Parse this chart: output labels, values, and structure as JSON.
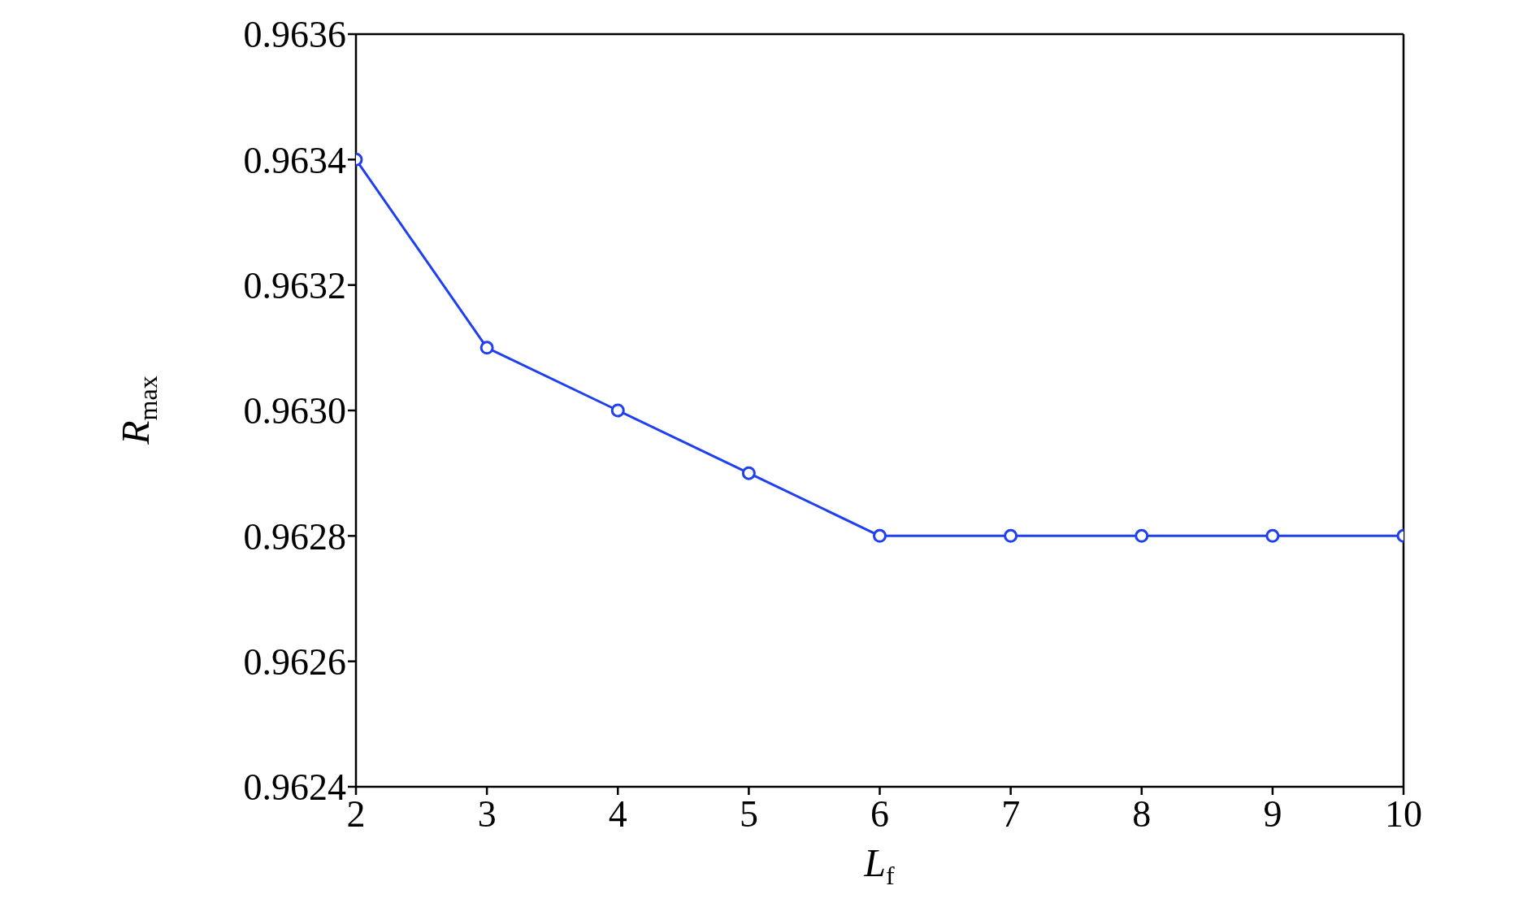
{
  "chart_data": {
    "type": "line",
    "xlabel": "L$_{f}$",
    "ylabel": "R$_{max}$",
    "x": [
      2,
      3,
      4,
      5,
      6,
      7,
      8,
      9,
      10
    ],
    "series": [
      {
        "color": "#1f3ff0",
        "values": [
          0.9634,
          0.9631,
          0.963,
          0.9629,
          0.9628,
          0.9628,
          0.9628,
          0.9628,
          0.9628
        ]
      }
    ],
    "xlim": [
      2,
      10
    ],
    "xticks": [
      2,
      3,
      4,
      5,
      6,
      7,
      8,
      9,
      10
    ],
    "ylim": [
      0.9624,
      0.9636
    ],
    "yticks": [
      0.9624,
      0.9626,
      0.9628,
      {
        "value": 0.963,
        "label": "0.9630"
      },
      0.9632,
      0.9634,
      0.9636
    ],
    "grid": false,
    "legend": false,
    "marker": "circle",
    "line_style": "solid"
  }
}
